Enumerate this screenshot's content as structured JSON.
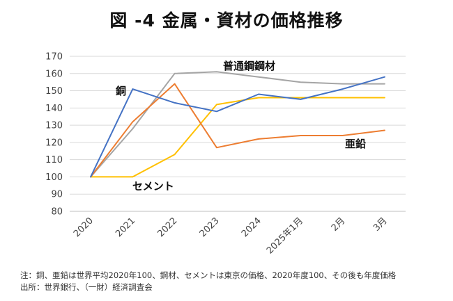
{
  "chart_data": {
    "type": "line",
    "title": "図 -4 金属・資材の価格推移",
    "categories": [
      "2020",
      "2021",
      "2022",
      "2023",
      "2024",
      "2025年1月",
      "2月",
      "3月"
    ],
    "ylim": [
      80,
      170
    ],
    "yticks": [
      80,
      90,
      100,
      110,
      120,
      130,
      140,
      150,
      160,
      170
    ],
    "grid": true,
    "legend": "inline labels",
    "series": [
      {
        "name": "銅",
        "color": "#4472C4",
        "values": [
          100,
          151,
          143,
          138,
          148,
          145,
          151,
          158
        ]
      },
      {
        "name": "亜鉛",
        "color": "#ED7D31",
        "values": [
          100,
          132,
          154,
          117,
          122,
          124,
          124,
          127
        ]
      },
      {
        "name": "普通鋼鋼材",
        "color": "#A5A5A5",
        "values": [
          100,
          128,
          160,
          161,
          158,
          155,
          154,
          154
        ]
      },
      {
        "name": "セメント",
        "color": "#FFC000",
        "values": [
          100,
          100,
          113,
          142,
          146,
          146,
          146,
          146
        ]
      }
    ]
  },
  "notes": {
    "line1": "注：銅、亜鉛は世界平均2020年100、鋼材、セメントは東京の価格、2020年度100、その後も年度価格",
    "line2": "出所：世界銀行、（一財）経済調査会"
  }
}
